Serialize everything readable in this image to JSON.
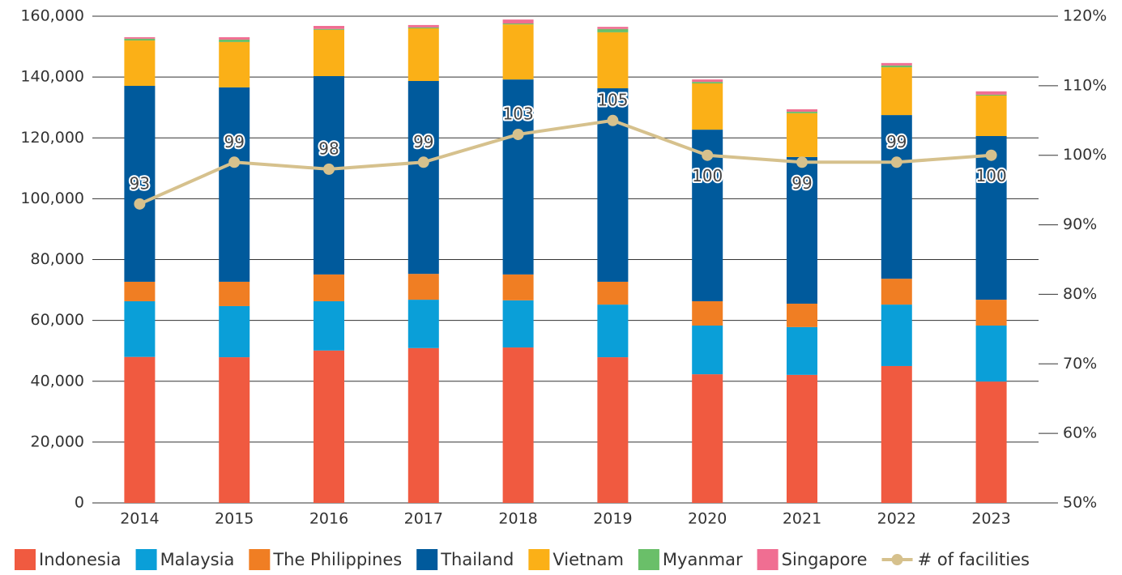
{
  "chart_data": {
    "type": "bar",
    "stacked": true,
    "categories": [
      "2014",
      "2015",
      "2016",
      "2017",
      "2018",
      "2019",
      "2020",
      "2021",
      "2022",
      "2023"
    ],
    "series": [
      {
        "name": "Indonesia",
        "color": "#f05a40",
        "values": [
          48000,
          47900,
          50100,
          50900,
          51100,
          47900,
          42300,
          42100,
          45000,
          39900
        ]
      },
      {
        "name": "Malaysia",
        "color": "#0a9fd8",
        "values": [
          18300,
          16800,
          16200,
          15900,
          15500,
          17300,
          16000,
          15700,
          20200,
          18400
        ]
      },
      {
        "name": "The Philippines",
        "color": "#f07e23",
        "values": [
          6400,
          8000,
          8800,
          8500,
          8500,
          7500,
          8000,
          7700,
          8500,
          8500
        ]
      },
      {
        "name": "Thailand",
        "color": "#005a9c",
        "values": [
          64400,
          63900,
          65200,
          63400,
          64100,
          63600,
          56400,
          48200,
          53800,
          53800
        ]
      },
      {
        "name": "Vietnam",
        "color": "#fbb017",
        "values": [
          14900,
          14900,
          15200,
          17300,
          18100,
          18400,
          15200,
          14400,
          15700,
          13300
        ]
      },
      {
        "name": "Myanmar",
        "color": "#6abf69",
        "values": [
          600,
          800,
          300,
          300,
          300,
          1100,
          500,
          500,
          600,
          300
        ]
      },
      {
        "name": "Singapore",
        "color": "#f06e92",
        "values": [
          500,
          800,
          1000,
          800,
          1300,
          700,
          800,
          800,
          800,
          1100
        ]
      },
      {
        "name": "# of facilities",
        "color": "#d6c18d",
        "type": "line",
        "axis": "y2",
        "values": [
          93,
          99,
          98,
          99,
          103,
          105,
          100,
          99,
          99,
          100
        ]
      }
    ],
    "ylim": [
      0,
      160000
    ],
    "yticks": [
      0,
      {
        "value": 20000,
        "label": "20,000"
      },
      {
        "value": 40000,
        "label": "40,000"
      },
      {
        "value": 60000,
        "label": "60,000"
      },
      {
        "value": 80000,
        "label": "80,000"
      },
      {
        "value": 100000,
        "label": "100,000"
      },
      {
        "value": 120000,
        "label": "120,000"
      },
      {
        "value": 140000,
        "label": "140,000"
      },
      {
        "value": 160000,
        "label": "160,000"
      }
    ],
    "y2lim": [
      50,
      120
    ],
    "y2ticks": [
      {
        "value": 50,
        "label": "50%"
      },
      {
        "value": 60,
        "label": "60%"
      },
      {
        "value": 70,
        "label": "70%"
      },
      {
        "value": 80,
        "label": "80%"
      },
      {
        "value": 90,
        "label": "90%"
      },
      {
        "value": 100,
        "label": "100%"
      },
      {
        "value": 110,
        "label": "110%"
      },
      {
        "value": 120,
        "label": "120%"
      }
    ],
    "grid": true,
    "legend": "bottom"
  }
}
